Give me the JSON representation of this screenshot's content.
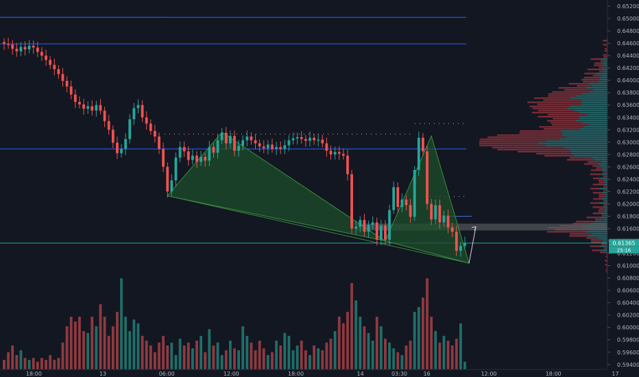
{
  "chart_data": {
    "type": "candlestick",
    "instrument_pair_price_scale": true,
    "colors": {
      "background": "#131722",
      "up": "#26a69a",
      "down": "#ef5350",
      "up_volume": "#1f6f68",
      "down_volume": "#8f3a40",
      "horizontal_line": "#2962ff",
      "pattern_fill": "#1e4d2b",
      "pattern_line": "#388e3c",
      "zone": "#5d6066",
      "last_price_line": "#26a69a",
      "axis_text": "#b2b5be"
    },
    "y_axis": {
      "range": [
        0.5932,
        0.653
      ],
      "tick_labels": [
        "0.65200",
        "0.65000",
        "0.64800",
        "0.64600",
        "0.64400",
        "0.64200",
        "0.64000",
        "0.63800",
        "0.63600",
        "0.63400",
        "0.63200",
        "0.63000",
        "0.62800",
        "0.62600",
        "0.62400",
        "0.62200",
        "0.62000",
        "0.61800",
        "0.61600",
        "0.61400",
        "0.61200",
        "0.61000",
        "0.60800",
        "0.60600",
        "0.60400",
        "0.60200",
        "0.60000",
        "0.59800",
        "0.59600",
        "0.59400"
      ]
    },
    "x_axis": {
      "tick_labels": [
        "18:00",
        "13",
        "06:00",
        "12:00",
        "18:00",
        "14",
        "03:30",
        "16",
        "12:00",
        "18:00",
        "17"
      ],
      "tick_positions_fraction": [
        0.053,
        0.161,
        0.261,
        0.362,
        0.463,
        0.564,
        0.625,
        0.668,
        0.765,
        0.866,
        0.963
      ]
    },
    "last_price": {
      "value": 0.61365,
      "label": "0.61365",
      "countdown": "25:16"
    },
    "horizontal_levels": [
      0.6502,
      0.6459,
      0.6289
    ],
    "dotted_levels": [
      0.6313,
      0.633,
      0.6212,
      0.618
    ],
    "candles_close": [
      0.6459,
      0.6458,
      0.6451,
      0.6447,
      0.6454,
      0.645,
      0.6456,
      0.6453,
      0.6446,
      0.644,
      0.6433,
      0.6425,
      0.6418,
      0.641,
      0.6399,
      0.639,
      0.6377,
      0.6365,
      0.6361,
      0.6354,
      0.6358,
      0.6351,
      0.636,
      0.6351,
      0.6334,
      0.632,
      0.6299,
      0.6282,
      0.6289,
      0.6305,
      0.6337,
      0.6355,
      0.636,
      0.634,
      0.633,
      0.6318,
      0.6309,
      0.6289,
      0.626,
      0.622,
      0.6238,
      0.6275,
      0.6292,
      0.6285,
      0.6271,
      0.6278,
      0.6268,
      0.6276,
      0.627,
      0.6292,
      0.6283,
      0.6303,
      0.6315,
      0.6298,
      0.631,
      0.6286,
      0.6294,
      0.6303,
      0.6309,
      0.6303,
      0.6298,
      0.6293,
      0.629,
      0.6296,
      0.6289,
      0.6292,
      0.6289,
      0.6295,
      0.6303,
      0.6306,
      0.6308,
      0.6305,
      0.6302,
      0.6307,
      0.6303,
      0.6304,
      0.6298,
      0.6286,
      0.628,
      0.6284,
      0.6281,
      0.6278,
      0.6248,
      0.616,
      0.6163,
      0.6174,
      0.6155,
      0.6166,
      0.617,
      0.6142,
      0.6165,
      0.6142,
      0.619,
      0.6227,
      0.6195,
      0.6207,
      0.6198,
      0.6179,
      0.6255,
      0.6307,
      0.6285,
      0.62,
      0.6175,
      0.6198,
      0.617,
      0.6181,
      0.6162,
      0.6155,
      0.6124,
      0.6132,
      0.6137
    ],
    "candles_open": [
      0.6462,
      0.6459,
      0.6458,
      0.6451,
      0.6447,
      0.6454,
      0.645,
      0.6456,
      0.6453,
      0.6446,
      0.644,
      0.6433,
      0.6425,
      0.6418,
      0.641,
      0.6399,
      0.639,
      0.6377,
      0.6365,
      0.6361,
      0.6354,
      0.6358,
      0.6351,
      0.636,
      0.6351,
      0.6334,
      0.632,
      0.6299,
      0.6282,
      0.6289,
      0.6305,
      0.6337,
      0.6355,
      0.636,
      0.634,
      0.633,
      0.6318,
      0.6309,
      0.6289,
      0.626,
      0.622,
      0.6238,
      0.6275,
      0.6292,
      0.6285,
      0.6271,
      0.6278,
      0.6268,
      0.6276,
      0.627,
      0.6292,
      0.6283,
      0.6303,
      0.6315,
      0.6298,
      0.631,
      0.6286,
      0.6294,
      0.6303,
      0.6309,
      0.6303,
      0.6298,
      0.6293,
      0.629,
      0.6296,
      0.6289,
      0.6292,
      0.6289,
      0.6295,
      0.6303,
      0.6306,
      0.6308,
      0.6305,
      0.6302,
      0.6307,
      0.6303,
      0.6304,
      0.6298,
      0.6286,
      0.628,
      0.6284,
      0.6281,
      0.6278,
      0.6248,
      0.616,
      0.6163,
      0.6174,
      0.6155,
      0.6166,
      0.617,
      0.6142,
      0.6165,
      0.6142,
      0.619,
      0.6227,
      0.6195,
      0.6207,
      0.6198,
      0.6179,
      0.6255,
      0.6307,
      0.6285,
      0.62,
      0.6175,
      0.6198,
      0.617,
      0.6181,
      0.6162,
      0.6155,
      0.6124,
      0.6132
    ],
    "volume_relative": [
      0.1,
      0.18,
      0.25,
      0.15,
      0.2,
      0.12,
      0.1,
      0.12,
      0.08,
      0.12,
      0.1,
      0.15,
      0.1,
      0.12,
      0.28,
      0.45,
      0.55,
      0.5,
      0.55,
      0.4,
      0.38,
      0.55,
      0.45,
      0.68,
      0.55,
      0.35,
      0.45,
      0.6,
      0.95,
      0.55,
      0.4,
      0.52,
      0.48,
      0.35,
      0.3,
      0.25,
      0.18,
      0.28,
      0.35,
      0.25,
      0.28,
      0.15,
      0.32,
      0.25,
      0.28,
      0.22,
      0.3,
      0.35,
      0.18,
      0.42,
      0.25,
      0.28,
      0.15,
      0.2,
      0.3,
      0.22,
      0.2,
      0.45,
      0.35,
      0.28,
      0.2,
      0.3,
      0.22,
      0.15,
      0.18,
      0.3,
      0.25,
      0.38,
      0.35,
      0.2,
      0.25,
      0.3,
      0.2,
      0.15,
      0.25,
      0.22,
      0.2,
      0.28,
      0.32,
      0.4,
      0.55,
      0.48,
      0.6,
      0.9,
      0.72,
      0.55,
      0.45,
      0.38,
      0.3,
      0.55,
      0.45,
      0.32,
      0.28,
      0.22,
      0.18,
      0.15,
      0.25,
      0.3,
      0.6,
      0.65,
      0.75,
      0.95,
      0.55,
      0.4,
      0.28,
      0.35,
      0.3,
      0.25,
      0.32,
      0.48,
      0.08
    ],
    "volume_profile_price_bins_note": "price-level volume distribution",
    "pattern": {
      "left_triangle": [
        [
          0.6213,
          "c23"
        ],
        [
          0.6316,
          "c47"
        ],
        [
          0.614,
          "c81"
        ]
      ],
      "right_triangle": [
        [
          0.614,
          "c81"
        ],
        [
          0.631,
          "c99"
        ],
        [
          0.6104,
          "c108"
        ]
      ],
      "projection_target": 0.6163
    }
  }
}
